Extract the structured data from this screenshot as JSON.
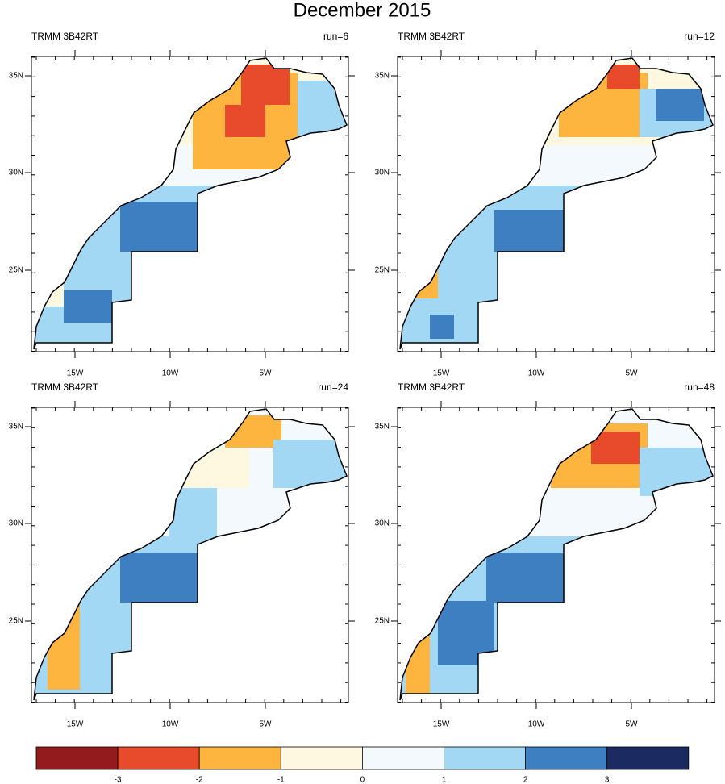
{
  "title": "December 2015",
  "panels": [
    {
      "source": "TRMM 3B42RT",
      "run": "run=6"
    },
    {
      "source": "TRMM 3B42RT",
      "run": "run=12"
    },
    {
      "source": "TRMM 3B42RT",
      "run": "run=24"
    },
    {
      "source": "TRMM 3B42RT",
      "run": "run=48"
    }
  ],
  "lat_ticks": [
    "35N",
    "30N",
    "25N"
  ],
  "lon_ticks": [
    "15W",
    "10W",
    "5W"
  ],
  "colorbar": {
    "colors": [
      "#931a1d",
      "#e84b2c",
      "#fdb53f",
      "#fff8e1",
      "#f3f9fd",
      "#a3d8f4",
      "#3d7fc1",
      "#1b2a61"
    ],
    "labels": [
      -3,
      -2,
      -1,
      0,
      1,
      2,
      3
    ]
  }
}
